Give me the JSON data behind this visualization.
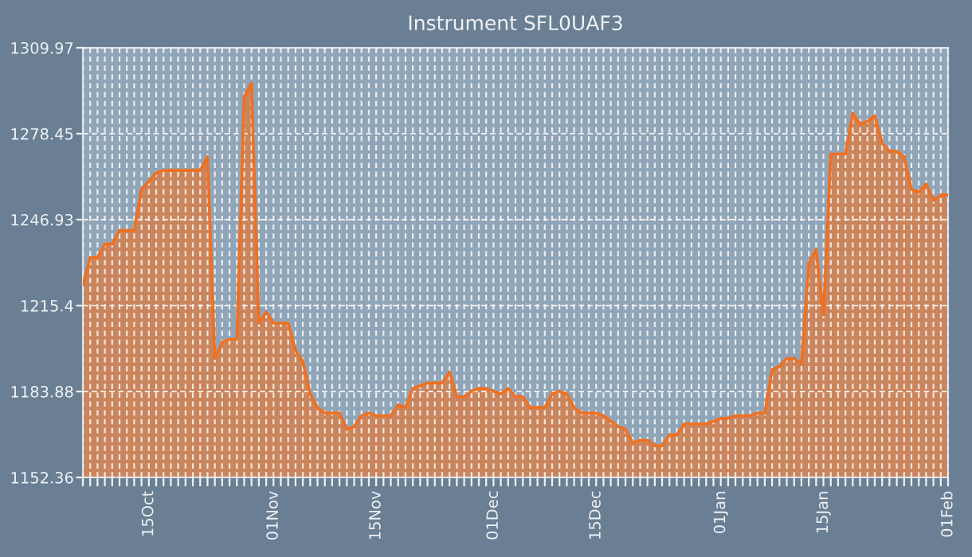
{
  "chart_data": {
    "type": "area",
    "title": "Instrument SFL0UAF3",
    "categories": [
      null,
      null,
      null,
      null,
      null,
      null,
      null,
      null,
      null,
      "15Oct",
      null,
      null,
      null,
      null,
      null,
      null,
      null,
      null,
      null,
      null,
      null,
      null,
      null,
      null,
      null,
      null,
      "01Nov",
      null,
      null,
      null,
      null,
      null,
      null,
      null,
      null,
      null,
      null,
      null,
      null,
      null,
      "15Nov",
      null,
      null,
      null,
      null,
      null,
      null,
      null,
      null,
      null,
      null,
      null,
      null,
      null,
      null,
      null,
      "01Dec",
      null,
      null,
      null,
      null,
      null,
      null,
      null,
      null,
      null,
      null,
      null,
      null,
      null,
      "15Dec",
      null,
      null,
      null,
      null,
      null,
      null,
      null,
      null,
      null,
      null,
      null,
      null,
      null,
      null,
      null,
      null,
      "01Jan",
      null,
      null,
      null,
      null,
      null,
      null,
      null,
      null,
      null,
      null,
      null,
      null,
      null,
      "15Jan",
      null,
      null,
      null,
      null,
      null,
      null,
      null,
      null,
      null,
      null,
      null,
      null,
      null,
      null,
      null,
      null,
      "01Feb"
    ],
    "series": [
      {
        "color": "#f07020",
        "values": [
          1223,
          1233,
          1233,
          1238,
          1238,
          1243,
          1243,
          1243,
          1258,
          1261,
          1264,
          1265,
          1265,
          1265,
          1265,
          1265,
          1265,
          1270,
          1196,
          1202,
          1203,
          1203,
          1292,
          1297,
          1209,
          1213,
          1209,
          1209,
          1209,
          1199,
          1195,
          1183,
          1178,
          1176,
          1176,
          1176,
          1170,
          1171,
          1175,
          1176,
          1175,
          1175,
          1175,
          1179,
          1178,
          1185,
          1186,
          1187,
          1187,
          1187,
          1191,
          1182,
          1182,
          1184,
          1185,
          1185,
          1184,
          1183,
          1185,
          1182,
          1182,
          1178,
          1178,
          1178,
          1183,
          1184,
          1183,
          1178,
          1176,
          1176,
          1176,
          1175,
          1173,
          1171,
          1170,
          1165,
          1166,
          1166,
          1164,
          1164,
          1168,
          1168,
          1172,
          1172,
          1172,
          1172,
          1173,
          1174,
          1174,
          1175,
          1175,
          1175,
          1176,
          1176,
          1192,
          1193,
          1196,
          1196,
          1194,
          1231,
          1236,
          1212,
          1271,
          1271,
          1271,
          1286,
          1282,
          1283,
          1285,
          1275,
          1272,
          1272,
          1270,
          1258,
          1257,
          1260,
          1254,
          1256,
          1256
        ]
      }
    ],
    "ylim": [
      1152.36,
      1309.97
    ],
    "yticks": [
      1152.36,
      1183.88,
      1215.4,
      1246.93,
      1278.45,
      1309.97
    ],
    "grid": true,
    "marker": "none",
    "line_style": "solid"
  }
}
